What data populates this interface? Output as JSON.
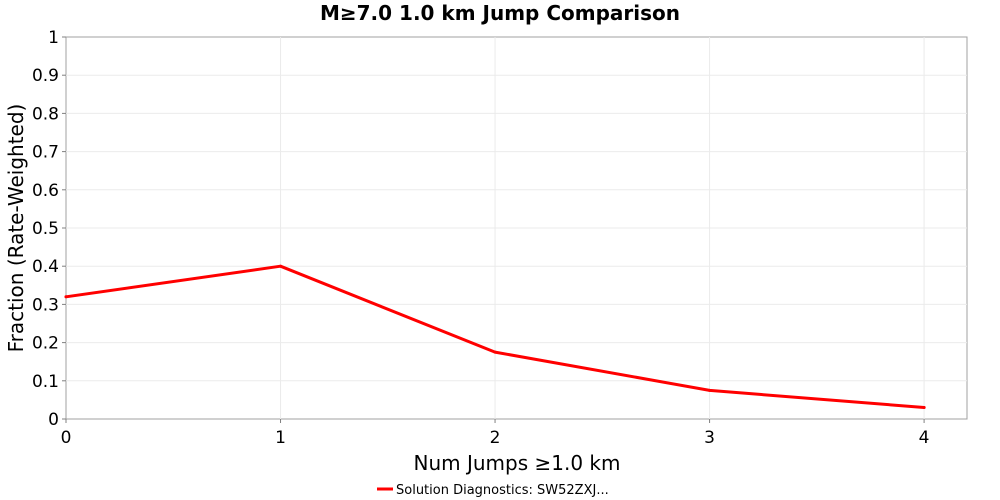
{
  "chart_data": {
    "type": "line",
    "title": "M≥7.0 1.0 km Jump Comparison",
    "xlabel": "Num Jumps ≥1.0 km",
    "ylabel": "Fraction (Rate-Weighted)",
    "xlim": [
      0,
      4.2
    ],
    "ylim": [
      0,
      1
    ],
    "x_ticks": [
      "0",
      "1",
      "2",
      "3",
      "4"
    ],
    "y_ticks": [
      "0",
      "0.1",
      "0.2",
      "0.3",
      "0.4",
      "0.5",
      "0.6",
      "0.7",
      "0.8",
      "0.9",
      "1"
    ],
    "grid": true,
    "legend_position": "bottom-center",
    "series": [
      {
        "name": "Solution Diagnostics: SW52ZXJ...",
        "color": "#ff0000",
        "x": [
          0,
          1,
          2,
          3,
          4
        ],
        "y": [
          0.32,
          0.4,
          0.175,
          0.075,
          0.03
        ]
      }
    ]
  }
}
